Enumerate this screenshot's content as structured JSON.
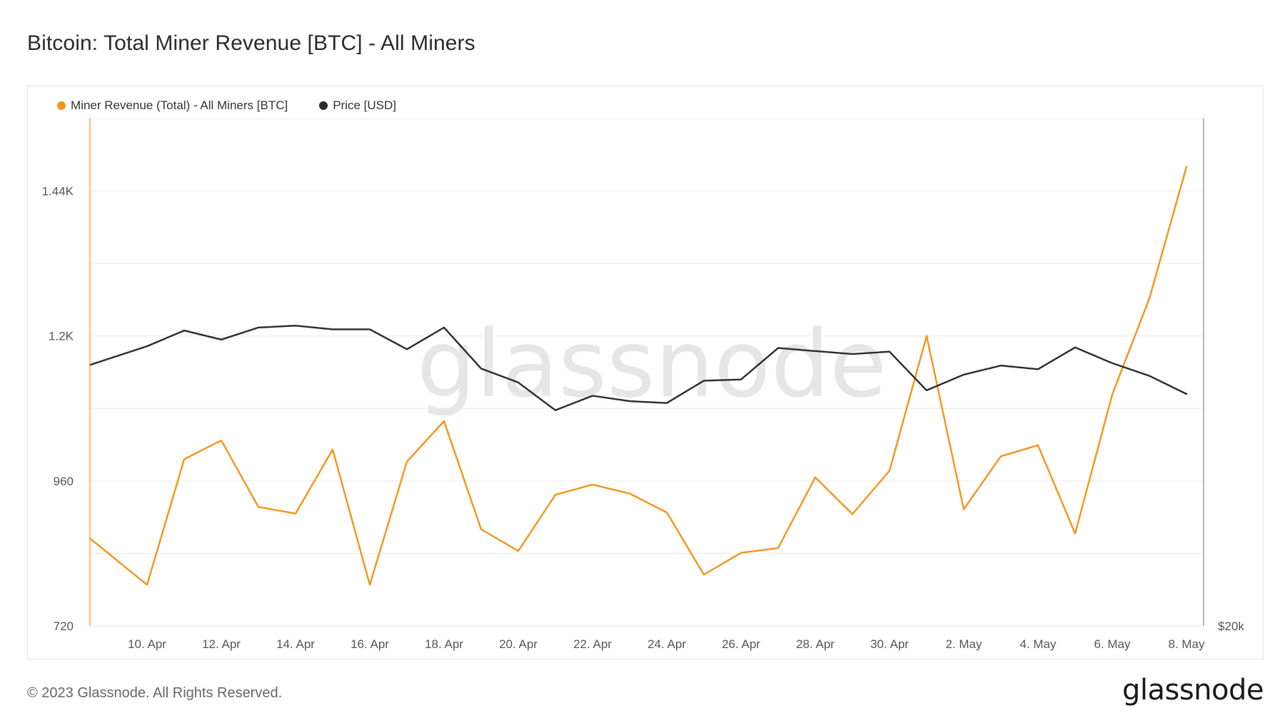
{
  "title": "Bitcoin: Total Miner Revenue [BTC] - All Miners",
  "watermark": "glassnode",
  "footer": {
    "copyright": "© 2023 Glassnode. All Rights Reserved.",
    "logo": "glassnode"
  },
  "colors": {
    "revenue": "#f7931a",
    "price": "#2b2b2b",
    "grid": "#ececec",
    "axis": "#f7931a"
  },
  "chart_data": {
    "type": "line",
    "x": [
      "9. Apr",
      "10. Apr",
      "11. Apr",
      "12. Apr",
      "13. Apr",
      "14. Apr",
      "15. Apr",
      "16. Apr",
      "17. Apr",
      "18. Apr",
      "19. Apr",
      "20. Apr",
      "21. Apr",
      "22. Apr",
      "23. Apr",
      "24. Apr",
      "25. Apr",
      "26. Apr",
      "27. Apr",
      "28. Apr",
      "29. Apr",
      "30. Apr",
      "1. May",
      "2. May",
      "3. May",
      "4. May",
      "5. May",
      "6. May",
      "7. May",
      "8. May"
    ],
    "x_ticks": [
      "10. Apr",
      "12. Apr",
      "14. Apr",
      "16. Apr",
      "18. Apr",
      "20. Apr",
      "22. Apr",
      "24. Apr",
      "26. Apr",
      "28. Apr",
      "30. Apr",
      "2. May",
      "4. May",
      "6. May",
      "8. May"
    ],
    "y_left": {
      "ticks": [
        "720",
        "960",
        "1.2K",
        "1.44K"
      ],
      "tick_values": [
        720,
        960,
        1200,
        1440
      ],
      "range": [
        720,
        1560
      ]
    },
    "y_right": {
      "ticks": [
        "$20k"
      ]
    },
    "series": [
      {
        "name": "Miner Revenue (Total) - All Miners [BTC]",
        "axis": "left",
        "values": [
          865,
          788,
          996,
          1027,
          917,
          906,
          1012,
          788,
          992,
          1059,
          880,
          844,
          937,
          954,
          939,
          908,
          805,
          841,
          849,
          966,
          905,
          977,
          1200,
          913,
          1001,
          1019,
          873,
          1103,
          1262,
          1480
        ]
      },
      {
        "name": "Price [USD]",
        "axis": "right",
        "values": [
          1152,
          1183,
          1209,
          1194,
          1214,
          1217,
          1211,
          1211,
          1178,
          1214,
          1146,
          1123,
          1077,
          1101,
          1092,
          1089,
          1126,
          1128,
          1180,
          1175,
          1170,
          1174,
          1110,
          1136,
          1151,
          1145,
          1181,
          1155,
          1134,
          1104
        ]
      }
    ],
    "legend_position": "top-left",
    "grid": true
  }
}
